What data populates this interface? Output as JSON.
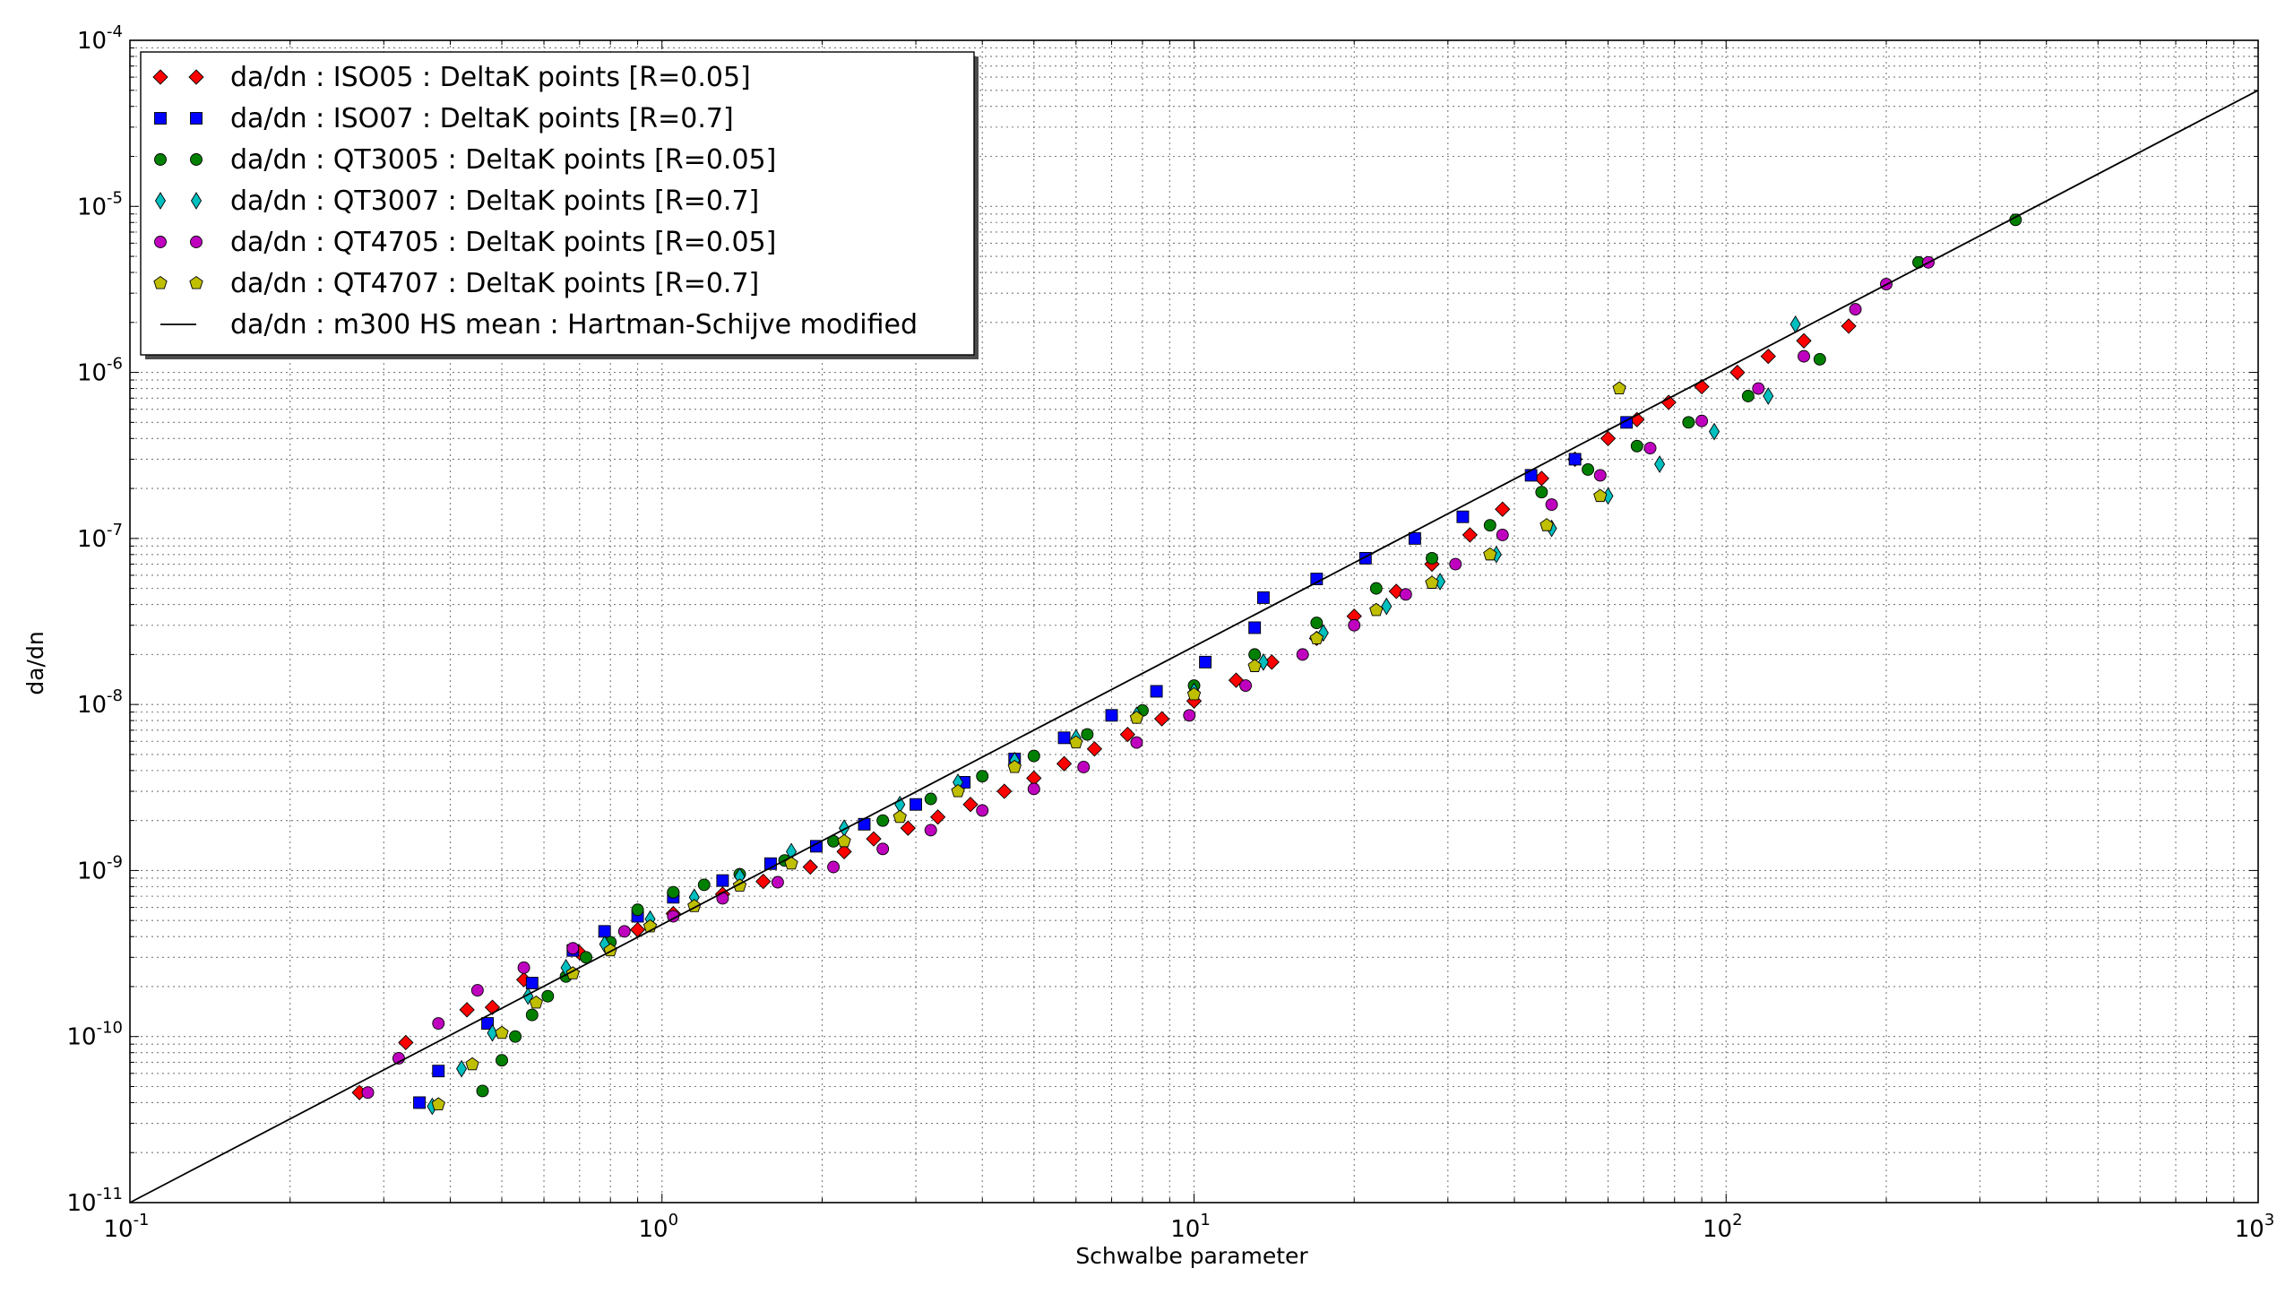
{
  "chart_data": {
    "type": "scatter",
    "xscale": "log",
    "yscale": "log",
    "xlim": [
      0.1,
      1000
    ],
    "ylim": [
      1e-11,
      0.0001
    ],
    "grid": true,
    "legend_position": "top-left",
    "xlabel": "Schwalbe parameter",
    "ylabel": "da/dn",
    "x_ticks": [
      {
        "base": "10",
        "exp": "-1"
      },
      {
        "base": "10",
        "exp": "0"
      },
      {
        "base": "10",
        "exp": "1"
      },
      {
        "base": "10",
        "exp": "2"
      },
      {
        "base": "10",
        "exp": "3"
      }
    ],
    "y_ticks": [
      {
        "base": "10",
        "exp": "-11"
      },
      {
        "base": "10",
        "exp": "-10"
      },
      {
        "base": "10",
        "exp": "-9"
      },
      {
        "base": "10",
        "exp": "-8"
      },
      {
        "base": "10",
        "exp": "-7"
      },
      {
        "base": "10",
        "exp": "-6"
      },
      {
        "base": "10",
        "exp": "-5"
      },
      {
        "base": "10",
        "exp": "-4"
      }
    ],
    "series": [
      {
        "name": "da/dn : ISO05 : DeltaK points [R=0.05]",
        "marker": "diamond",
        "color": "#ff0000",
        "points": [
          [
            0.27,
            4.6e-11
          ],
          [
            0.33,
            9.2e-11
          ],
          [
            0.43,
            1.45e-10
          ],
          [
            0.48,
            1.5e-10
          ],
          [
            0.55,
            2.2e-10
          ],
          [
            0.7,
            3.2e-10
          ],
          [
            0.9,
            4.4e-10
          ],
          [
            1.05,
            5.5e-10
          ],
          [
            1.3,
            7.2e-10
          ],
          [
            1.55,
            8.6e-10
          ],
          [
            1.9,
            1.05e-09
          ],
          [
            2.2,
            1.3e-09
          ],
          [
            2.5,
            1.55e-09
          ],
          [
            2.9,
            1.8e-09
          ],
          [
            3.3,
            2.1e-09
          ],
          [
            3.8,
            2.5e-09
          ],
          [
            4.4,
            3e-09
          ],
          [
            5.0,
            3.6e-09
          ],
          [
            5.7,
            4.4e-09
          ],
          [
            6.5,
            5.4e-09
          ],
          [
            7.5,
            6.6e-09
          ],
          [
            8.7,
            8.2e-09
          ],
          [
            10.0,
            1.05e-08
          ],
          [
            12.0,
            1.4e-08
          ],
          [
            14.0,
            1.8e-08
          ],
          [
            17.0,
            2.5e-08
          ],
          [
            20.0,
            3.4e-08
          ],
          [
            24.0,
            4.8e-08
          ],
          [
            28.0,
            7e-08
          ],
          [
            33.0,
            1.05e-07
          ],
          [
            38.0,
            1.5e-07
          ],
          [
            45.0,
            2.3e-07
          ],
          [
            52.0,
            3e-07
          ],
          [
            60.0,
            4e-07
          ],
          [
            68.0,
            5.2e-07
          ],
          [
            78.0,
            6.6e-07
          ],
          [
            90.0,
            8.2e-07
          ],
          [
            105.0,
            1e-06
          ],
          [
            120.0,
            1.25e-06
          ],
          [
            140.0,
            1.55e-06
          ],
          [
            170.0,
            1.9e-06
          ]
        ]
      },
      {
        "name": "da/dn : ISO07 : DeltaK points [R=0.7]",
        "marker": "square",
        "color": "#0000ff",
        "points": [
          [
            0.35,
            4e-11
          ],
          [
            0.38,
            6.2e-11
          ],
          [
            0.47,
            1.2e-10
          ],
          [
            0.57,
            2.1e-10
          ],
          [
            0.68,
            3.3e-10
          ],
          [
            0.78,
            4.3e-10
          ],
          [
            0.9,
            5.3e-10
          ],
          [
            1.05,
            6.9e-10
          ],
          [
            1.3,
            8.7e-10
          ],
          [
            1.6,
            1.1e-09
          ],
          [
            1.95,
            1.4e-09
          ],
          [
            2.4,
            1.9e-09
          ],
          [
            3.0,
            2.5e-09
          ],
          [
            3.7,
            3.4e-09
          ],
          [
            4.6,
            4.7e-09
          ],
          [
            5.7,
            6.3e-09
          ],
          [
            7.0,
            8.6e-09
          ],
          [
            8.5,
            1.2e-08
          ],
          [
            10.5,
            1.8e-08
          ],
          [
            13.0,
            2.9e-08
          ],
          [
            13.5,
            4.4e-08
          ],
          [
            17.0,
            5.7e-08
          ],
          [
            21.0,
            7.6e-08
          ],
          [
            26.0,
            1e-07
          ],
          [
            32.0,
            1.35e-07
          ],
          [
            43.0,
            2.4e-07
          ],
          [
            52.0,
            3e-07
          ],
          [
            65.0,
            5e-07
          ]
        ]
      },
      {
        "name": "da/dn : QT3005 : DeltaK points [R=0.05]",
        "marker": "circle",
        "color": "#008000",
        "points": [
          [
            0.46,
            4.7e-11
          ],
          [
            0.5,
            7.2e-11
          ],
          [
            0.53,
            1e-10
          ],
          [
            0.57,
            1.35e-10
          ],
          [
            0.61,
            1.75e-10
          ],
          [
            0.66,
            2.3e-10
          ],
          [
            0.72,
            3e-10
          ],
          [
            0.8,
            3.7e-10
          ],
          [
            0.9,
            5.8e-10
          ],
          [
            1.05,
            7.4e-10
          ],
          [
            1.2,
            8.2e-10
          ],
          [
            1.4,
            9.5e-10
          ],
          [
            1.7,
            1.15e-09
          ],
          [
            2.1,
            1.5e-09
          ],
          [
            2.6,
            2e-09
          ],
          [
            3.2,
            2.7e-09
          ],
          [
            4.0,
            3.7e-09
          ],
          [
            5.0,
            4.9e-09
          ],
          [
            6.3,
            6.6e-09
          ],
          [
            8.0,
            9.2e-09
          ],
          [
            10.0,
            1.3e-08
          ],
          [
            13.0,
            2e-08
          ],
          [
            17.0,
            3.1e-08
          ],
          [
            22.0,
            5e-08
          ],
          [
            28.0,
            7.6e-08
          ],
          [
            36.0,
            1.2e-07
          ],
          [
            45.0,
            1.9e-07
          ],
          [
            55.0,
            2.6e-07
          ],
          [
            68.0,
            3.6e-07
          ],
          [
            85.0,
            5e-07
          ],
          [
            110.0,
            7.2e-07
          ],
          [
            150.0,
            1.2e-06
          ],
          [
            230.0,
            4.6e-06
          ],
          [
            350.0,
            8.3e-06
          ]
        ]
      },
      {
        "name": "da/dn : QT3007 : DeltaK points [R=0.7]",
        "marker": "thin_diamond",
        "color": "#00bfbf",
        "points": [
          [
            0.37,
            3.8e-11
          ],
          [
            0.42,
            6.4e-11
          ],
          [
            0.48,
            1.05e-10
          ],
          [
            0.56,
            1.75e-10
          ],
          [
            0.66,
            2.6e-10
          ],
          [
            0.78,
            3.6e-10
          ],
          [
            0.95,
            5.1e-10
          ],
          [
            1.15,
            6.9e-10
          ],
          [
            1.4,
            9.2e-10
          ],
          [
            1.75,
            1.3e-09
          ],
          [
            2.2,
            1.8e-09
          ],
          [
            2.8,
            2.5e-09
          ],
          [
            3.6,
            3.4e-09
          ],
          [
            4.6,
            4.6e-09
          ],
          [
            6.0,
            6.3e-09
          ],
          [
            7.8,
            8.6e-09
          ],
          [
            10.0,
            1.2e-08
          ],
          [
            13.5,
            1.8e-08
          ],
          [
            17.5,
            2.7e-08
          ],
          [
            23.0,
            3.9e-08
          ],
          [
            29.0,
            5.5e-08
          ],
          [
            37.0,
            8e-08
          ],
          [
            47.0,
            1.15e-07
          ],
          [
            60.0,
            1.8e-07
          ],
          [
            75.0,
            2.8e-07
          ],
          [
            95.0,
            4.4e-07
          ],
          [
            120.0,
            7.2e-07
          ],
          [
            135.0,
            1.95e-06
          ]
        ]
      },
      {
        "name": "da/dn : QT4705 : DeltaK points [R=0.05]",
        "marker": "circle",
        "color": "#bf00bf",
        "points": [
          [
            0.28,
            4.6e-11
          ],
          [
            0.32,
            7.4e-11
          ],
          [
            0.38,
            1.2e-10
          ],
          [
            0.45,
            1.9e-10
          ],
          [
            0.55,
            2.6e-10
          ],
          [
            0.68,
            3.4e-10
          ],
          [
            0.85,
            4.3e-10
          ],
          [
            1.05,
            5.3e-10
          ],
          [
            1.3,
            6.8e-10
          ],
          [
            1.65,
            8.5e-10
          ],
          [
            2.1,
            1.05e-09
          ],
          [
            2.6,
            1.35e-09
          ],
          [
            3.2,
            1.75e-09
          ],
          [
            4.0,
            2.3e-09
          ],
          [
            5.0,
            3.1e-09
          ],
          [
            6.2,
            4.2e-09
          ],
          [
            7.8,
            5.9e-09
          ],
          [
            9.8,
            8.6e-09
          ],
          [
            12.5,
            1.3e-08
          ],
          [
            16.0,
            2e-08
          ],
          [
            20.0,
            3e-08
          ],
          [
            25.0,
            4.6e-08
          ],
          [
            31.0,
            7e-08
          ],
          [
            38.0,
            1.05e-07
          ],
          [
            47.0,
            1.6e-07
          ],
          [
            58.0,
            2.4e-07
          ],
          [
            72.0,
            3.5e-07
          ],
          [
            90.0,
            5.1e-07
          ],
          [
            115.0,
            8e-07
          ],
          [
            140.0,
            1.25e-06
          ],
          [
            175.0,
            2.4e-06
          ],
          [
            200.0,
            3.4e-06
          ],
          [
            240.0,
            4.6e-06
          ]
        ]
      },
      {
        "name": "da/dn : QT4707 : DeltaK points [R=0.7]",
        "marker": "pentagon",
        "color": "#bfbf00",
        "points": [
          [
            0.38,
            3.9e-11
          ],
          [
            0.44,
            6.8e-11
          ],
          [
            0.5,
            1.05e-10
          ],
          [
            0.58,
            1.6e-10
          ],
          [
            0.68,
            2.4e-10
          ],
          [
            0.8,
            3.3e-10
          ],
          [
            0.95,
            4.6e-10
          ],
          [
            1.15,
            6.1e-10
          ],
          [
            1.4,
            8.1e-10
          ],
          [
            1.75,
            1.1e-09
          ],
          [
            2.2,
            1.5e-09
          ],
          [
            2.8,
            2.1e-09
          ],
          [
            3.6,
            3e-09
          ],
          [
            4.6,
            4.2e-09
          ],
          [
            6.0,
            5.9e-09
          ],
          [
            7.8,
            8.3e-09
          ],
          [
            10.0,
            1.15e-08
          ],
          [
            13.0,
            1.7e-08
          ],
          [
            17.0,
            2.5e-08
          ],
          [
            22.0,
            3.7e-08
          ],
          [
            28.0,
            5.4e-08
          ],
          [
            36.0,
            8e-08
          ],
          [
            46.0,
            1.2e-07
          ],
          [
            58.0,
            1.8e-07
          ],
          [
            63.0,
            8e-07
          ]
        ]
      },
      {
        "name": "da/dn : m300 HS mean : Hartman-Schijve modified",
        "marker": "line",
        "color": "#000000",
        "points": [
          [
            0.1,
            1e-11
          ],
          [
            1000.0,
            5e-05
          ]
        ]
      }
    ]
  }
}
